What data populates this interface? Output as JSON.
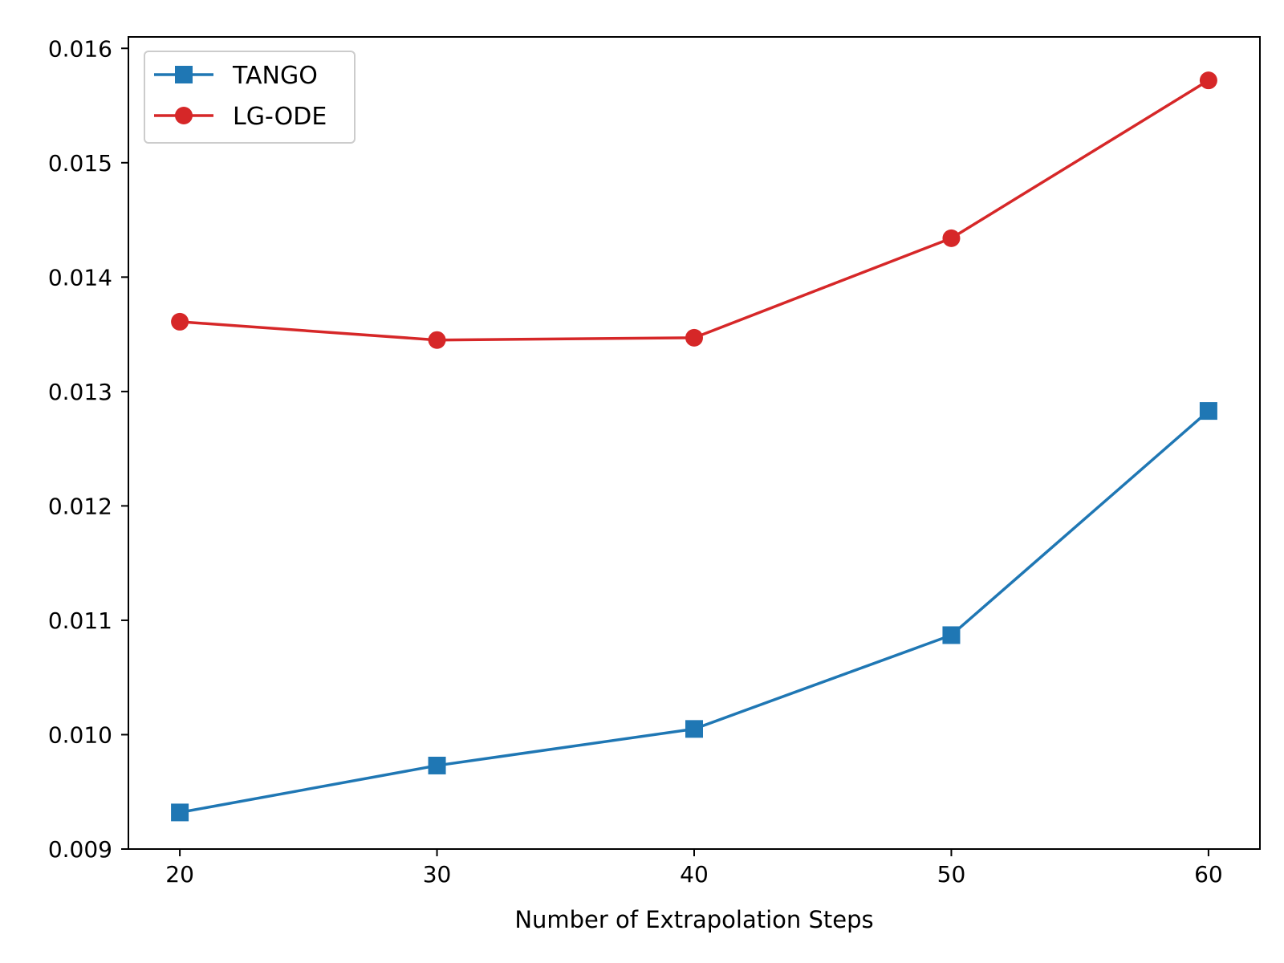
{
  "chart_data": {
    "type": "line",
    "title": "",
    "xlabel": "Number of Extrapolation Steps",
    "ylabel": "",
    "x": [
      20,
      30,
      40,
      50,
      60
    ],
    "xlim": [
      18,
      62
    ],
    "ylim": [
      0.009,
      0.0161
    ],
    "x_ticks": [
      20,
      30,
      40,
      50,
      60
    ],
    "y_ticks": [
      0.009,
      0.01,
      0.011,
      0.012,
      0.013,
      0.014,
      0.015,
      0.016
    ],
    "x_tick_labels": [
      "20",
      "30",
      "40",
      "50",
      "60"
    ],
    "y_tick_labels": [
      "0.009",
      "0.010",
      "0.011",
      "0.012",
      "0.013",
      "0.014",
      "0.015",
      "0.016"
    ],
    "grid": false,
    "legend_position": "top-left",
    "series": [
      {
        "name": "TANGO",
        "values": [
          0.00932,
          0.00973,
          0.01005,
          0.01087,
          0.01283
        ],
        "color": "#1f77b4",
        "marker": "square"
      },
      {
        "name": "LG-ODE",
        "values": [
          0.01361,
          0.01345,
          0.01347,
          0.01434,
          0.01572
        ],
        "color": "#d62728",
        "marker": "circle"
      }
    ]
  }
}
